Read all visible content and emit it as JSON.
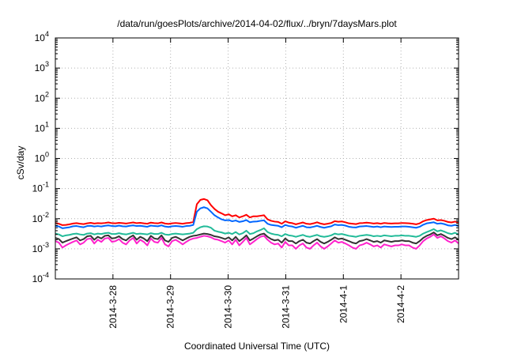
{
  "chart_data": {
    "type": "line",
    "title": "/data/run/goesPlots/archive/2014-04-02/flux/../bryn/7daysMars.plot",
    "xlabel": "Coordinated Universal Time (UTC)",
    "ylabel": "cSv/day",
    "yscale": "log",
    "ylim": [
      0.0001,
      10000
    ],
    "xlim": [
      0,
      7
    ],
    "grid": true,
    "y_ticks": [
      {
        "value": 0.0001,
        "base": "10",
        "exp": "-4"
      },
      {
        "value": 0.001,
        "base": "10",
        "exp": "-3"
      },
      {
        "value": 0.01,
        "base": "10",
        "exp": "-2"
      },
      {
        "value": 0.1,
        "base": "10",
        "exp": "-1"
      },
      {
        "value": 1,
        "base": "10",
        "exp": "0"
      },
      {
        "value": 10,
        "base": "10",
        "exp": "1"
      },
      {
        "value": 100,
        "base": "10",
        "exp": "2"
      },
      {
        "value": 1000,
        "base": "10",
        "exp": "3"
      },
      {
        "value": 10000,
        "base": "10",
        "exp": "4"
      }
    ],
    "x_ticks": [
      {
        "value": 1,
        "label": "2014-3-28"
      },
      {
        "value": 2,
        "label": "2014-3-29"
      },
      {
        "value": 3,
        "label": "2014-3-30"
      },
      {
        "value": 4,
        "label": "2014-3-31"
      },
      {
        "value": 5,
        "label": "2014-4-1"
      },
      {
        "value": 6,
        "label": "2014-4-2"
      }
    ],
    "series": [
      {
        "color": "#ff0000",
        "values": [
          0.0072,
          0.0068,
          0.0061,
          0.0062,
          0.0065,
          0.0069,
          0.0071,
          0.0068,
          0.0066,
          0.007,
          0.0073,
          0.0069,
          0.0071,
          0.007,
          0.0072,
          0.0075,
          0.0071,
          0.007,
          0.0073,
          0.0071,
          0.0069,
          0.0072,
          0.0075,
          0.0071,
          0.0073,
          0.007,
          0.0068,
          0.0074,
          0.0071,
          0.007,
          0.0075,
          0.0069,
          0.0067,
          0.007,
          0.0072,
          0.007,
          0.0068,
          0.0071,
          0.0073,
          0.0078,
          0.03,
          0.042,
          0.045,
          0.041,
          0.028,
          0.021,
          0.017,
          0.015,
          0.013,
          0.014,
          0.012,
          0.013,
          0.011,
          0.012,
          0.0135,
          0.011,
          0.012,
          0.012,
          0.0125,
          0.013,
          0.0095,
          0.0085,
          0.008,
          0.0078,
          0.0068,
          0.0082,
          0.0074,
          0.0071,
          0.0065,
          0.007,
          0.0075,
          0.0068,
          0.0066,
          0.007,
          0.0076,
          0.0069,
          0.0065,
          0.0068,
          0.0072,
          0.0083,
          0.0079,
          0.0081,
          0.0076,
          0.007,
          0.0068,
          0.0066,
          0.0071,
          0.0072,
          0.0074,
          0.0072,
          0.0069,
          0.0071,
          0.0068,
          0.0072,
          0.007,
          0.0069,
          0.007,
          0.007,
          0.0072,
          0.0071,
          0.007,
          0.0068,
          0.0065,
          0.007,
          0.0082,
          0.009,
          0.0095,
          0.01,
          0.0088,
          0.009,
          0.0085,
          0.0078,
          0.0075,
          0.008,
          0.0075
        ]
      },
      {
        "color": "#0066ff",
        "values": [
          0.0058,
          0.0055,
          0.0048,
          0.005,
          0.0052,
          0.0056,
          0.0057,
          0.0054,
          0.0052,
          0.0057,
          0.0058,
          0.0055,
          0.0057,
          0.0055,
          0.0058,
          0.006,
          0.0057,
          0.0056,
          0.0059,
          0.0056,
          0.0055,
          0.0058,
          0.006,
          0.0057,
          0.0058,
          0.0056,
          0.0054,
          0.0059,
          0.0057,
          0.0056,
          0.006,
          0.0055,
          0.0053,
          0.0056,
          0.0057,
          0.0056,
          0.0054,
          0.0057,
          0.0058,
          0.0062,
          0.017,
          0.022,
          0.024,
          0.022,
          0.017,
          0.013,
          0.011,
          0.0095,
          0.0088,
          0.009,
          0.0082,
          0.0087,
          0.0078,
          0.0082,
          0.009,
          0.0076,
          0.008,
          0.0081,
          0.0085,
          0.0088,
          0.0068,
          0.0062,
          0.006,
          0.0058,
          0.0052,
          0.0062,
          0.0057,
          0.0055,
          0.005,
          0.0054,
          0.0058,
          0.0052,
          0.0051,
          0.0054,
          0.0058,
          0.0053,
          0.005,
          0.0053,
          0.0056,
          0.0064,
          0.0061,
          0.0062,
          0.0059,
          0.0054,
          0.0052,
          0.0051,
          0.0055,
          0.0056,
          0.0057,
          0.0055,
          0.0053,
          0.0055,
          0.0052,
          0.0055,
          0.0054,
          0.0053,
          0.0054,
          0.0054,
          0.0055,
          0.0055,
          0.0054,
          0.0052,
          0.005,
          0.0054,
          0.0063,
          0.007,
          0.0073,
          0.0076,
          0.0068,
          0.007,
          0.0066,
          0.006,
          0.0058,
          0.0062,
          0.0057
        ]
      },
      {
        "color": "#22bb99",
        "values": [
          0.0032,
          0.003,
          0.0026,
          0.0028,
          0.0029,
          0.0031,
          0.0032,
          0.003,
          0.0029,
          0.0032,
          0.0033,
          0.003,
          0.0032,
          0.0031,
          0.0033,
          0.0034,
          0.0031,
          0.0031,
          0.0033,
          0.0031,
          0.003,
          0.0032,
          0.0034,
          0.0031,
          0.0032,
          0.0031,
          0.003,
          0.0033,
          0.0031,
          0.0031,
          0.0034,
          0.003,
          0.0029,
          0.0031,
          0.0032,
          0.0031,
          0.003,
          0.0031,
          0.0032,
          0.0034,
          0.0045,
          0.0052,
          0.0056,
          0.0055,
          0.005,
          0.004,
          0.0037,
          0.0035,
          0.0032,
          0.0034,
          0.0031,
          0.0036,
          0.003,
          0.0033,
          0.004,
          0.0031,
          0.0033,
          0.0038,
          0.0042,
          0.0048,
          0.0036,
          0.0032,
          0.003,
          0.0029,
          0.0026,
          0.0031,
          0.0028,
          0.0027,
          0.0025,
          0.0027,
          0.0029,
          0.0026,
          0.0025,
          0.0027,
          0.0029,
          0.0026,
          0.0025,
          0.0026,
          0.0028,
          0.0032,
          0.003,
          0.0031,
          0.0029,
          0.0027,
          0.0026,
          0.0025,
          0.0027,
          0.0028,
          0.0029,
          0.0028,
          0.0026,
          0.0027,
          0.0026,
          0.0028,
          0.0027,
          0.0026,
          0.0027,
          0.0027,
          0.0028,
          0.0027,
          0.0027,
          0.0026,
          0.0025,
          0.0027,
          0.0032,
          0.0036,
          0.004,
          0.0045,
          0.0038,
          0.0041,
          0.0037,
          0.0033,
          0.0031,
          0.0034,
          0.003
        ]
      },
      {
        "color": "#333333",
        "values": [
          0.0023,
          0.0021,
          0.0016,
          0.0018,
          0.002,
          0.0022,
          0.0024,
          0.0019,
          0.0021,
          0.0026,
          0.0027,
          0.002,
          0.0025,
          0.0022,
          0.0027,
          0.0028,
          0.0022,
          0.0023,
          0.0026,
          0.0021,
          0.0019,
          0.0024,
          0.0028,
          0.002,
          0.0025,
          0.0022,
          0.0018,
          0.0027,
          0.0022,
          0.0021,
          0.0028,
          0.0019,
          0.0017,
          0.0023,
          0.0025,
          0.0022,
          0.0019,
          0.0022,
          0.0025,
          0.0027,
          0.0028,
          0.003,
          0.0032,
          0.0031,
          0.0029,
          0.0026,
          0.0025,
          0.0023,
          0.0021,
          0.0024,
          0.0019,
          0.0025,
          0.0018,
          0.0022,
          0.0028,
          0.0019,
          0.0022,
          0.0026,
          0.003,
          0.0032,
          0.0025,
          0.0021,
          0.0019,
          0.002,
          0.0016,
          0.0022,
          0.0018,
          0.0018,
          0.0015,
          0.0018,
          0.002,
          0.0016,
          0.0015,
          0.0018,
          0.0021,
          0.0017,
          0.0015,
          0.0017,
          0.002,
          0.0024,
          0.0021,
          0.0022,
          0.002,
          0.0018,
          0.0016,
          0.0015,
          0.0018,
          0.0019,
          0.0021,
          0.0019,
          0.0017,
          0.0018,
          0.0016,
          0.0019,
          0.0018,
          0.0017,
          0.0018,
          0.0018,
          0.0019,
          0.0018,
          0.0018,
          0.0016,
          0.0015,
          0.0018,
          0.0023,
          0.0027,
          0.003,
          0.0035,
          0.0028,
          0.0031,
          0.0027,
          0.0023,
          0.0021,
          0.0024,
          0.002
        ]
      },
      {
        "color": "#ff22cc",
        "values": [
          0.0018,
          0.0016,
          0.0011,
          0.0013,
          0.0015,
          0.0017,
          0.0019,
          0.0014,
          0.0016,
          0.0021,
          0.0022,
          0.0015,
          0.002,
          0.0017,
          0.0022,
          0.0023,
          0.0017,
          0.0018,
          0.0021,
          0.0016,
          0.0014,
          0.0019,
          0.0023,
          0.0015,
          0.002,
          0.0017,
          0.0013,
          0.0022,
          0.0017,
          0.0016,
          0.0023,
          0.0014,
          0.0012,
          0.0018,
          0.002,
          0.0017,
          0.0014,
          0.0017,
          0.002,
          0.0022,
          0.0023,
          0.0025,
          0.0027,
          0.0026,
          0.0024,
          0.0021,
          0.002,
          0.0018,
          0.0016,
          0.0019,
          0.0014,
          0.002,
          0.0013,
          0.0017,
          0.0023,
          0.0014,
          0.0017,
          0.0021,
          0.0025,
          0.0027,
          0.002,
          0.0016,
          0.0014,
          0.0015,
          0.0011,
          0.0017,
          0.0013,
          0.0013,
          0.001,
          0.0013,
          0.0015,
          0.0011,
          0.001,
          0.0013,
          0.0016,
          0.0012,
          0.001,
          0.0012,
          0.0015,
          0.0019,
          0.0016,
          0.0017,
          0.0015,
          0.0013,
          0.0011,
          0.001,
          0.0013,
          0.0014,
          0.0016,
          0.0014,
          0.0012,
          0.0013,
          0.0011,
          0.0014,
          0.0013,
          0.0012,
          0.0013,
          0.0013,
          0.0014,
          0.0013,
          0.0013,
          0.0011,
          0.001,
          0.0013,
          0.0018,
          0.0022,
          0.0025,
          0.003,
          0.0023,
          0.0026,
          0.0022,
          0.0018,
          0.0016,
          0.0019,
          0.0015
        ]
      }
    ]
  }
}
